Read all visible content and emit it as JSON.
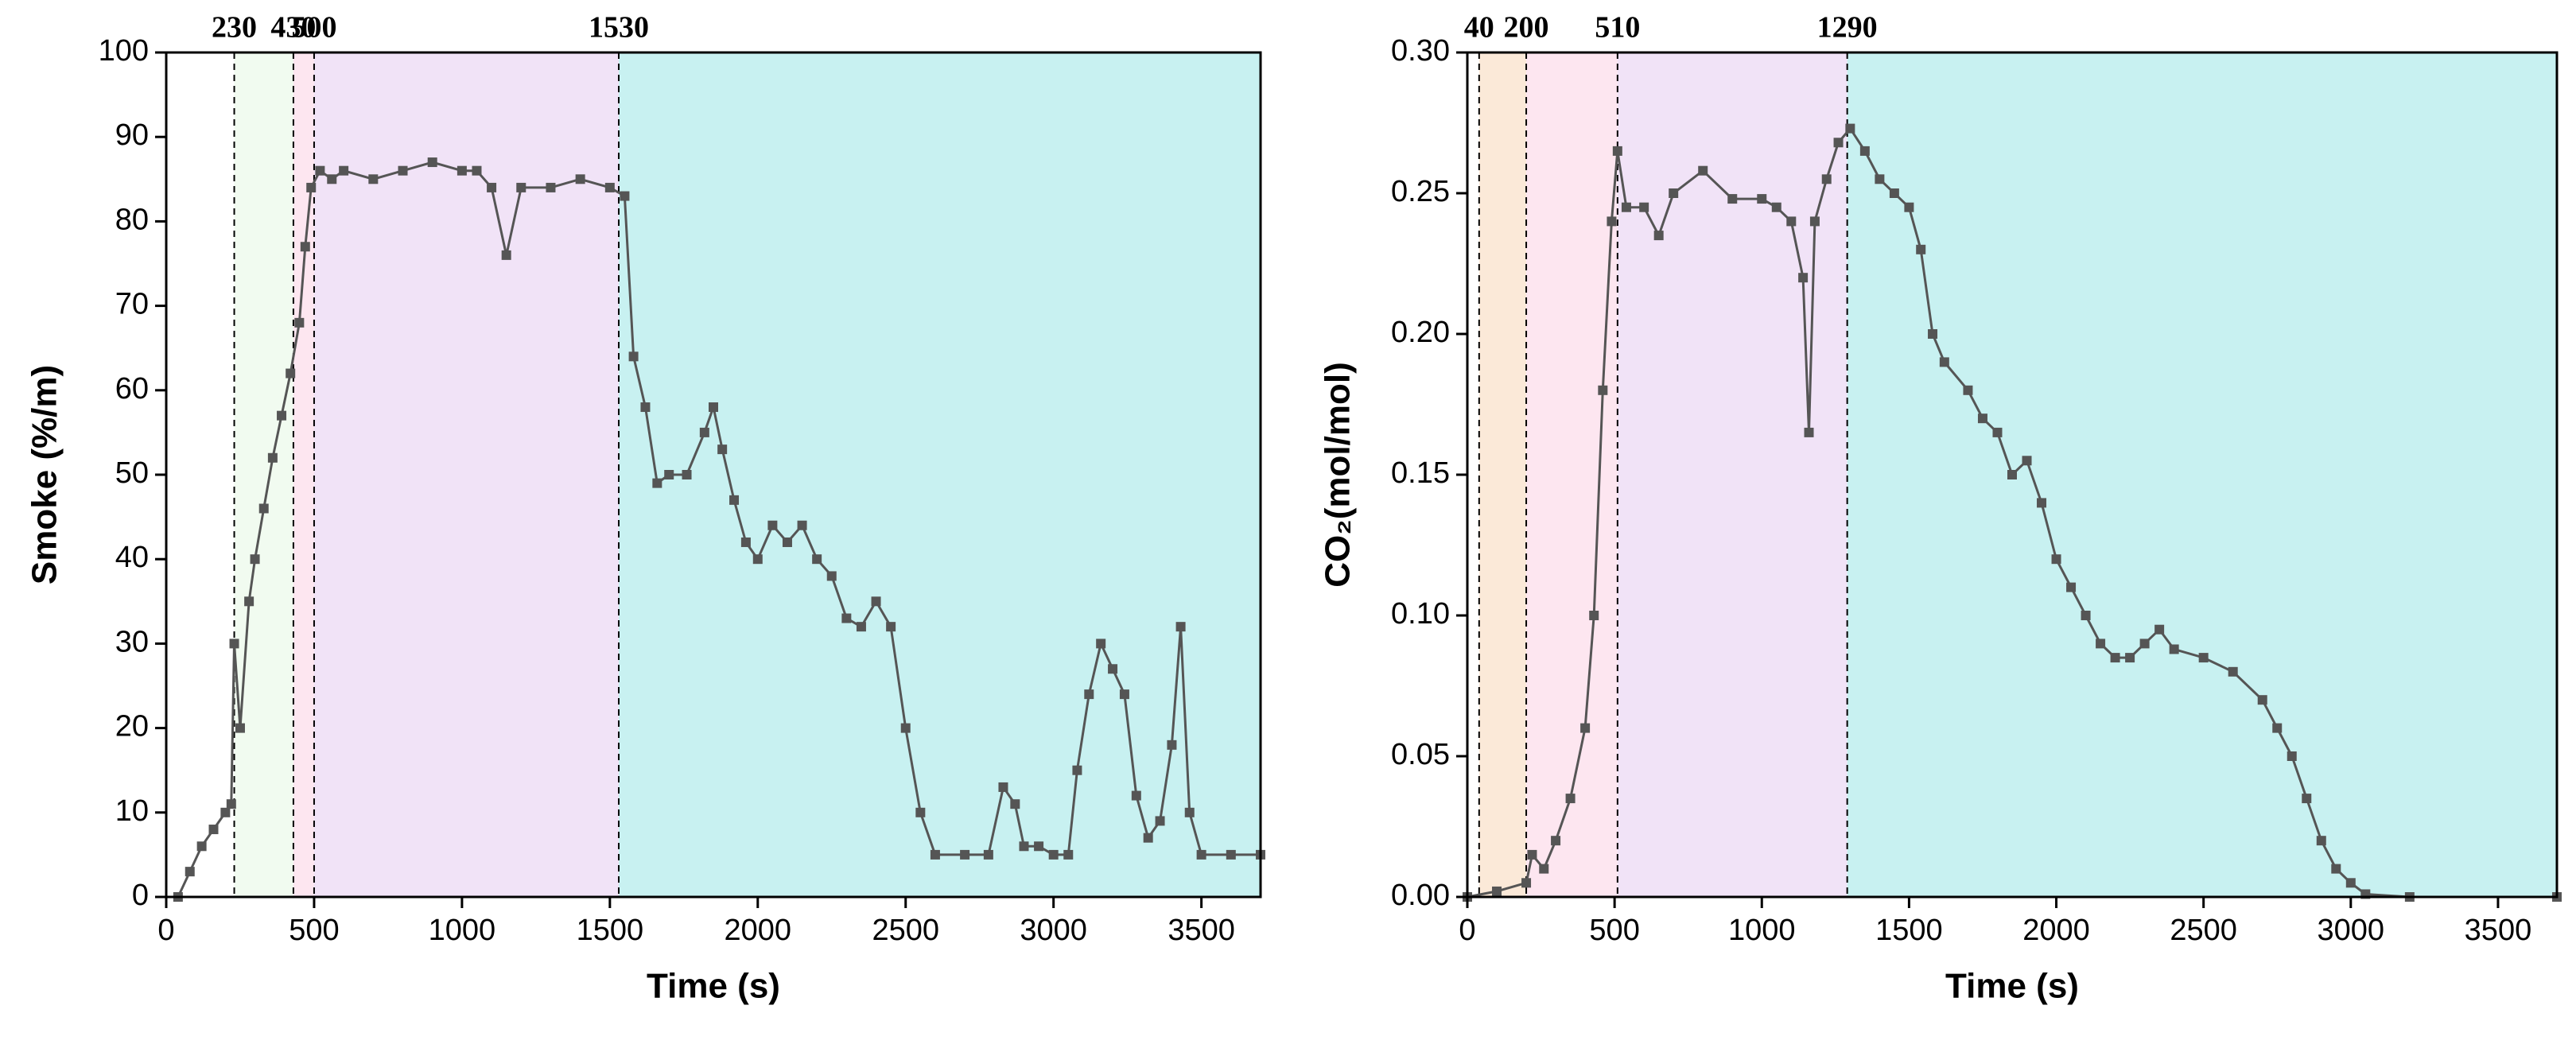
{
  "chart_data": [
    {
      "type": "line",
      "xlabel": "Time (s)",
      "ylabel": "Smoke (%/m)",
      "xlim": [
        0,
        3700
      ],
      "xticks": [
        0,
        500,
        1000,
        1500,
        2000,
        2500,
        3000,
        3500
      ],
      "ylim": [
        0,
        100
      ],
      "yticks": [
        0,
        10,
        20,
        30,
        40,
        50,
        60,
        70,
        80,
        90,
        100
      ],
      "phases": [
        230,
        430,
        500,
        1530
      ],
      "phase_colors": [
        "#ffffff",
        "#f1fbf0",
        "#fde6f0",
        "#f1e3f7",
        "#c8f1f1"
      ],
      "series": [
        {
          "color": "#555555",
          "x": [
            40,
            80,
            120,
            160,
            200,
            220,
            230,
            250,
            280,
            300,
            330,
            360,
            390,
            420,
            450,
            470,
            490,
            520,
            560,
            600,
            700,
            800,
            900,
            1000,
            1050,
            1100,
            1150,
            1200,
            1300,
            1400,
            1500,
            1550,
            1580,
            1620,
            1660,
            1700,
            1760,
            1820,
            1850,
            1880,
            1920,
            1960,
            2000,
            2050,
            2100,
            2150,
            2200,
            2250,
            2300,
            2350,
            2400,
            2450,
            2500,
            2550,
            2600,
            2700,
            2780,
            2830,
            2870,
            2900,
            2950,
            3000,
            3050,
            3080,
            3120,
            3160,
            3200,
            3240,
            3280,
            3320,
            3360,
            3400,
            3430,
            3460,
            3500,
            3600,
            3700
          ],
          "values": [
            0,
            3,
            6,
            8,
            10,
            11,
            30,
            20,
            35,
            40,
            46,
            52,
            57,
            62,
            68,
            77,
            84,
            86,
            85,
            86,
            85,
            86,
            87,
            86,
            86,
            84,
            76,
            84,
            84,
            85,
            84,
            83,
            64,
            58,
            49,
            50,
            50,
            55,
            58,
            53,
            47,
            42,
            40,
            44,
            42,
            44,
            40,
            38,
            33,
            32,
            35,
            32,
            20,
            10,
            5,
            5,
            5,
            13,
            11,
            6,
            6,
            5,
            5,
            15,
            24,
            30,
            27,
            24,
            12,
            7,
            9,
            18,
            32,
            10,
            5,
            5,
            5
          ]
        }
      ]
    },
    {
      "type": "line",
      "xlabel": "Time (s)",
      "ylabel": "CO₂(mol/mol)",
      "xlim": [
        0,
        3700
      ],
      "xticks": [
        0,
        500,
        1000,
        1500,
        2000,
        2500,
        3000,
        3500
      ],
      "ylim": [
        0,
        0.3
      ],
      "yticks": [
        {
          "value": 0,
          "label": "0.00"
        },
        {
          "value": 0.05,
          "label": "0.05"
        },
        {
          "value": 0.1,
          "label": "0.10"
        },
        {
          "value": 0.15,
          "label": "0.15"
        },
        {
          "value": 0.2,
          "label": "0.20"
        },
        {
          "value": 0.25,
          "label": "0.25"
        },
        {
          "value": 0.3,
          "label": "0.30"
        }
      ],
      "phases": [
        40,
        200,
        510,
        1290
      ],
      "phase_colors": [
        "#ffffff",
        "#fbe9d8",
        "#fde6f0",
        "#f1e3f7",
        "#c8f1f1"
      ],
      "series": [
        {
          "color": "#555555",
          "x": [
            0,
            100,
            200,
            220,
            260,
            300,
            350,
            400,
            430,
            460,
            490,
            510,
            540,
            600,
            650,
            700,
            800,
            900,
            1000,
            1050,
            1100,
            1140,
            1160,
            1180,
            1220,
            1260,
            1300,
            1350,
            1400,
            1450,
            1500,
            1540,
            1580,
            1620,
            1700,
            1750,
            1800,
            1850,
            1900,
            1950,
            2000,
            2050,
            2100,
            2150,
            2200,
            2250,
            2300,
            2350,
            2400,
            2500,
            2600,
            2700,
            2750,
            2800,
            2850,
            2900,
            2950,
            3000,
            3050,
            3200,
            3700
          ],
          "values": [
            0,
            0.002,
            0.005,
            0.015,
            0.01,
            0.02,
            0.035,
            0.06,
            0.1,
            0.18,
            0.24,
            0.265,
            0.245,
            0.245,
            0.235,
            0.25,
            0.258,
            0.248,
            0.248,
            0.245,
            0.24,
            0.22,
            0.165,
            0.24,
            0.255,
            0.268,
            0.273,
            0.265,
            0.255,
            0.25,
            0.245,
            0.23,
            0.2,
            0.19,
            0.18,
            0.17,
            0.165,
            0.15,
            0.155,
            0.14,
            0.12,
            0.11,
            0.1,
            0.09,
            0.085,
            0.085,
            0.09,
            0.095,
            0.088,
            0.085,
            0.08,
            0.07,
            0.06,
            0.05,
            0.035,
            0.02,
            0.01,
            0.005,
            0.001,
            0,
            0
          ]
        }
      ]
    }
  ]
}
